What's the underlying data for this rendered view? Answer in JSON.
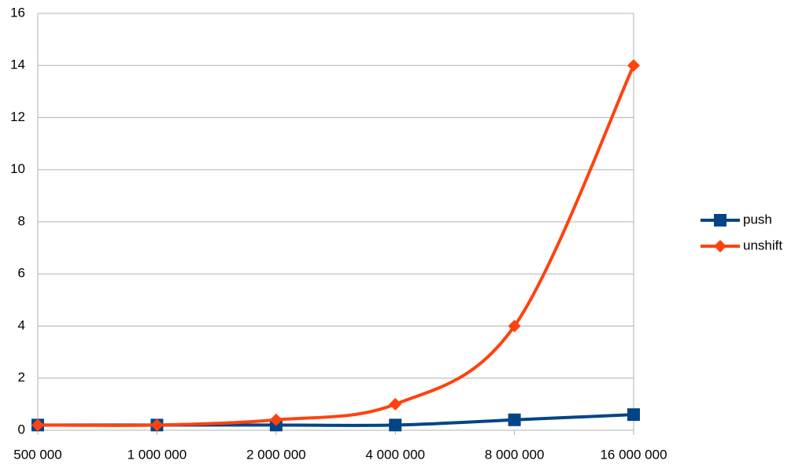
{
  "chart_data": {
    "type": "line",
    "categories": [
      "500 000",
      "1 000 000",
      "2 000 000",
      "4 000 000",
      "8 000 000",
      "16 000 000"
    ],
    "series": [
      {
        "name": "push",
        "color": "#004586",
        "marker": "square",
        "values": [
          0.2,
          0.2,
          0.2,
          0.2,
          0.4,
          0.6
        ]
      },
      {
        "name": "unshift",
        "color": "#ff420e",
        "marker": "diamond",
        "values": [
          0.2,
          0.2,
          0.4,
          1,
          4,
          14
        ]
      }
    ],
    "ylim": [
      0,
      16
    ],
    "yticks": [
      0,
      2,
      4,
      6,
      8,
      10,
      12,
      14,
      16
    ],
    "grid": true,
    "smooth": true,
    "legend": "right"
  }
}
